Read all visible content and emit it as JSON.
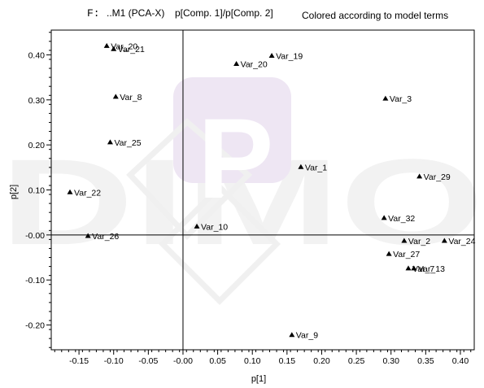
{
  "header": {
    "file_label": "F:",
    "model_label": "..M1 (PCA-X)",
    "title": "p[Comp. 1]/p[Comp. 2]",
    "subtitle": "Colored according to model terms"
  },
  "watermark": {
    "text": "DIMO",
    "logo_letter": "P"
  },
  "chart_data": {
    "type": "scatter",
    "title": "p[Comp. 1]/p[Comp. 2]",
    "subtitle": "Colored according to model terms",
    "xlabel": "p[1]",
    "ylabel": "p[2]",
    "xlim": [
      -0.19,
      0.42
    ],
    "ylim": [
      -0.255,
      0.455
    ],
    "xticks": [
      "-0.15",
      "-0.10",
      "-0.05",
      "-0.00",
      "0.05",
      "0.10",
      "0.15",
      "0.20",
      "0.25",
      "0.30",
      "0.35",
      "0.40"
    ],
    "xtick_values": [
      -0.15,
      -0.1,
      -0.05,
      0.0,
      0.05,
      0.1,
      0.15,
      0.2,
      0.25,
      0.3,
      0.35,
      0.4
    ],
    "yticks": [
      "0.40",
      "0.30",
      "0.20",
      "0.10",
      "-0.00",
      "-0.10",
      "-0.20"
    ],
    "ytick_values": [
      0.4,
      0.3,
      0.2,
      0.1,
      0.0,
      -0.1,
      -0.2
    ],
    "grid": false,
    "marker": "triangle",
    "marker_color": "#000000",
    "points": [
      {
        "label": "Var_20",
        "x": -0.11,
        "y": 0.42
      },
      {
        "label": "Var_21",
        "x": -0.1,
        "y": 0.413
      },
      {
        "label": "Var_19",
        "x": 0.128,
        "y": 0.398
      },
      {
        "label": "Var_20",
        "x": 0.077,
        "y": 0.38
      },
      {
        "label": "Var_8",
        "x": -0.097,
        "y": 0.307
      },
      {
        "label": "Var_3",
        "x": 0.292,
        "y": 0.303
      },
      {
        "label": "Var_25",
        "x": -0.105,
        "y": 0.206
      },
      {
        "label": "Var_1",
        "x": 0.17,
        "y": 0.151
      },
      {
        "label": "Var_29",
        "x": 0.341,
        "y": 0.13
      },
      {
        "label": "Var_22",
        "x": -0.163,
        "y": 0.095
      },
      {
        "label": "Var_32",
        "x": 0.29,
        "y": 0.038
      },
      {
        "label": "Var_10",
        "x": 0.02,
        "y": 0.019
      },
      {
        "label": "Var_26",
        "x": -0.137,
        "y": -0.002
      },
      {
        "label": "Var_2",
        "x": 0.319,
        "y": -0.013
      },
      {
        "label": "Var_24",
        "x": 0.377,
        "y": -0.013
      },
      {
        "label": "Var_27",
        "x": 0.297,
        "y": -0.042
      },
      {
        "label": "Var_7",
        "x": 0.325,
        "y": -0.074
      },
      {
        "label": "Var_13",
        "x": 0.333,
        "y": -0.074
      },
      {
        "label": "Var_9",
        "x": 0.157,
        "y": -0.222
      }
    ]
  }
}
